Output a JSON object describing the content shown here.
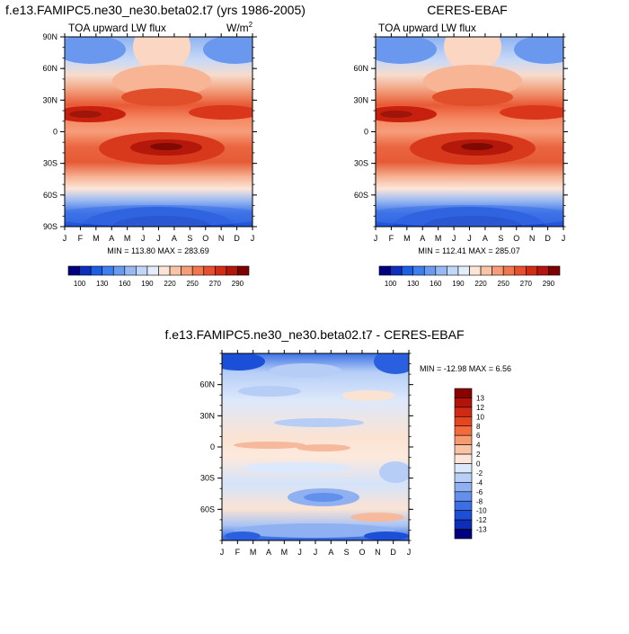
{
  "chart_data": [
    {
      "type": "heatmap",
      "panel": "model",
      "title": "f.e13.FAMIPC5.ne30_ne30.beta02.t7 (yrs 1986-2005)",
      "left_label": "TOA upward LW flux",
      "units_label": "W/m",
      "units_superscript": "2",
      "x_tick_labels": [
        "J",
        "F",
        "M",
        "A",
        "M",
        "J",
        "J",
        "A",
        "S",
        "O",
        "N",
        "D",
        "J"
      ],
      "y_tick_labels": [
        "90N",
        "60N",
        "30N",
        "0",
        "30S",
        "60S",
        "90S"
      ],
      "ylim": [
        -90,
        90
      ],
      "stats": "MIN = 113.80 MAX = 283.69",
      "min": 113.8,
      "max": 283.69,
      "colorbar_labels": [
        "100",
        "130",
        "160",
        "190",
        "220",
        "250",
        "270",
        "290"
      ]
    },
    {
      "type": "heatmap",
      "panel": "obs",
      "title": "CERES-EBAF",
      "left_label": "TOA upward LW flux",
      "x_tick_labels": [
        "J",
        "F",
        "M",
        "A",
        "M",
        "J",
        "J",
        "A",
        "S",
        "O",
        "N",
        "D",
        "J"
      ],
      "y_tick_labels": [
        "60N",
        "30N",
        "0",
        "30S",
        "60S"
      ],
      "ylim": [
        -90,
        90
      ],
      "stats": "MIN = 112.41 MAX = 285.07",
      "min": 112.41,
      "max": 285.07,
      "colorbar_labels": [
        "100",
        "130",
        "160",
        "190",
        "220",
        "250",
        "270",
        "290"
      ]
    },
    {
      "type": "heatmap",
      "panel": "diff",
      "title": "f.e13.FAMIPC5.ne30_ne30.beta02.t7 - CERES-EBAF",
      "x_tick_labels": [
        "J",
        "F",
        "M",
        "A",
        "M",
        "J",
        "J",
        "A",
        "S",
        "O",
        "N",
        "D",
        "J"
      ],
      "y_tick_labels": [
        "60N",
        "30N",
        "0",
        "30S",
        "60S"
      ],
      "ylim": [
        -90,
        90
      ],
      "stats": "MIN = -12.98 MAX =   6.56",
      "min": -12.98,
      "max": 6.56,
      "colorbar_labels": [
        "13",
        "12",
        "10",
        "8",
        "6",
        "4",
        "2",
        "0",
        "-2",
        "-4",
        "-6",
        "-8",
        "-10",
        "-12",
        "-13"
      ]
    }
  ],
  "colors": {
    "lw_scale": [
      "#00007f",
      "#0d2fbf",
      "#1b5fe6",
      "#3d7fee",
      "#6a9bf0",
      "#98b8f4",
      "#c2d6f8",
      "#e3ecfb",
      "#fde4d4",
      "#f9c3a8",
      "#f59c7a",
      "#f0764e",
      "#e84f2c",
      "#d32c16",
      "#b3160c",
      "#7f0000"
    ],
    "diff_scale": [
      "#8b0000",
      "#b2140c",
      "#cf2a14",
      "#e5461f",
      "#f36b3a",
      "#f79a72",
      "#fbc3a6",
      "#fde6d8",
      "#dce8fb",
      "#b9d0f6",
      "#8fb1f1",
      "#6390ec",
      "#3b6fe3",
      "#1c4fd8",
      "#0c2eb8",
      "#00007f"
    ]
  }
}
